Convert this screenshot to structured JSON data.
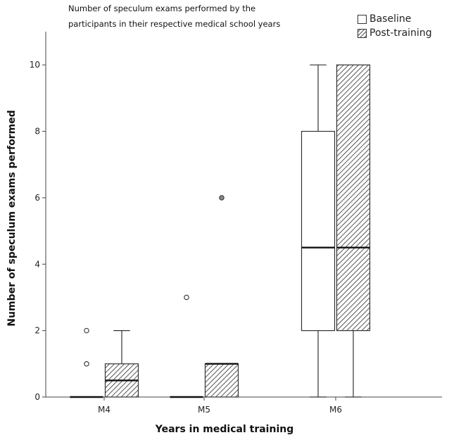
{
  "chart_data": {
    "type": "boxplot",
    "title_lines": [
      "Number of speculum exams performed by the",
      "participants in their respective medical school years"
    ],
    "xlabel": "Years in medical training",
    "ylabel": "Number of speculum exams performed",
    "categories": [
      "M4",
      "M5",
      "M6"
    ],
    "ylim": [
      0,
      11
    ],
    "yticks": [
      0,
      2,
      4,
      6,
      8,
      10
    ],
    "grid": false,
    "legend_position": "top-right",
    "series": [
      {
        "name": "Baseline",
        "fill": "#ffffff",
        "hatched": false,
        "boxes": [
          {
            "min": 0,
            "q1": 0,
            "median": 0,
            "q3": 0,
            "max": 0,
            "outliers": [
              1,
              2
            ]
          },
          {
            "min": 0,
            "q1": 0,
            "median": 0,
            "q3": 0,
            "max": 0,
            "outliers": [
              3
            ]
          },
          {
            "min": 0,
            "q1": 2,
            "median": 4.5,
            "q3": 8,
            "max": 10,
            "outliers": []
          }
        ]
      },
      {
        "name": "Post-training",
        "fill": "#d8d8d8",
        "hatched": true,
        "boxes": [
          {
            "min": 0,
            "q1": 0,
            "median": 0.5,
            "q3": 1,
            "max": 2,
            "outliers": []
          },
          {
            "min": 0,
            "q1": 0,
            "median": 1,
            "q3": 1,
            "max": 1,
            "outliers": [
              6
            ]
          },
          {
            "min": 0,
            "q1": 2,
            "median": 4.5,
            "q3": 10,
            "max": 10,
            "outliers": []
          }
        ]
      }
    ]
  }
}
